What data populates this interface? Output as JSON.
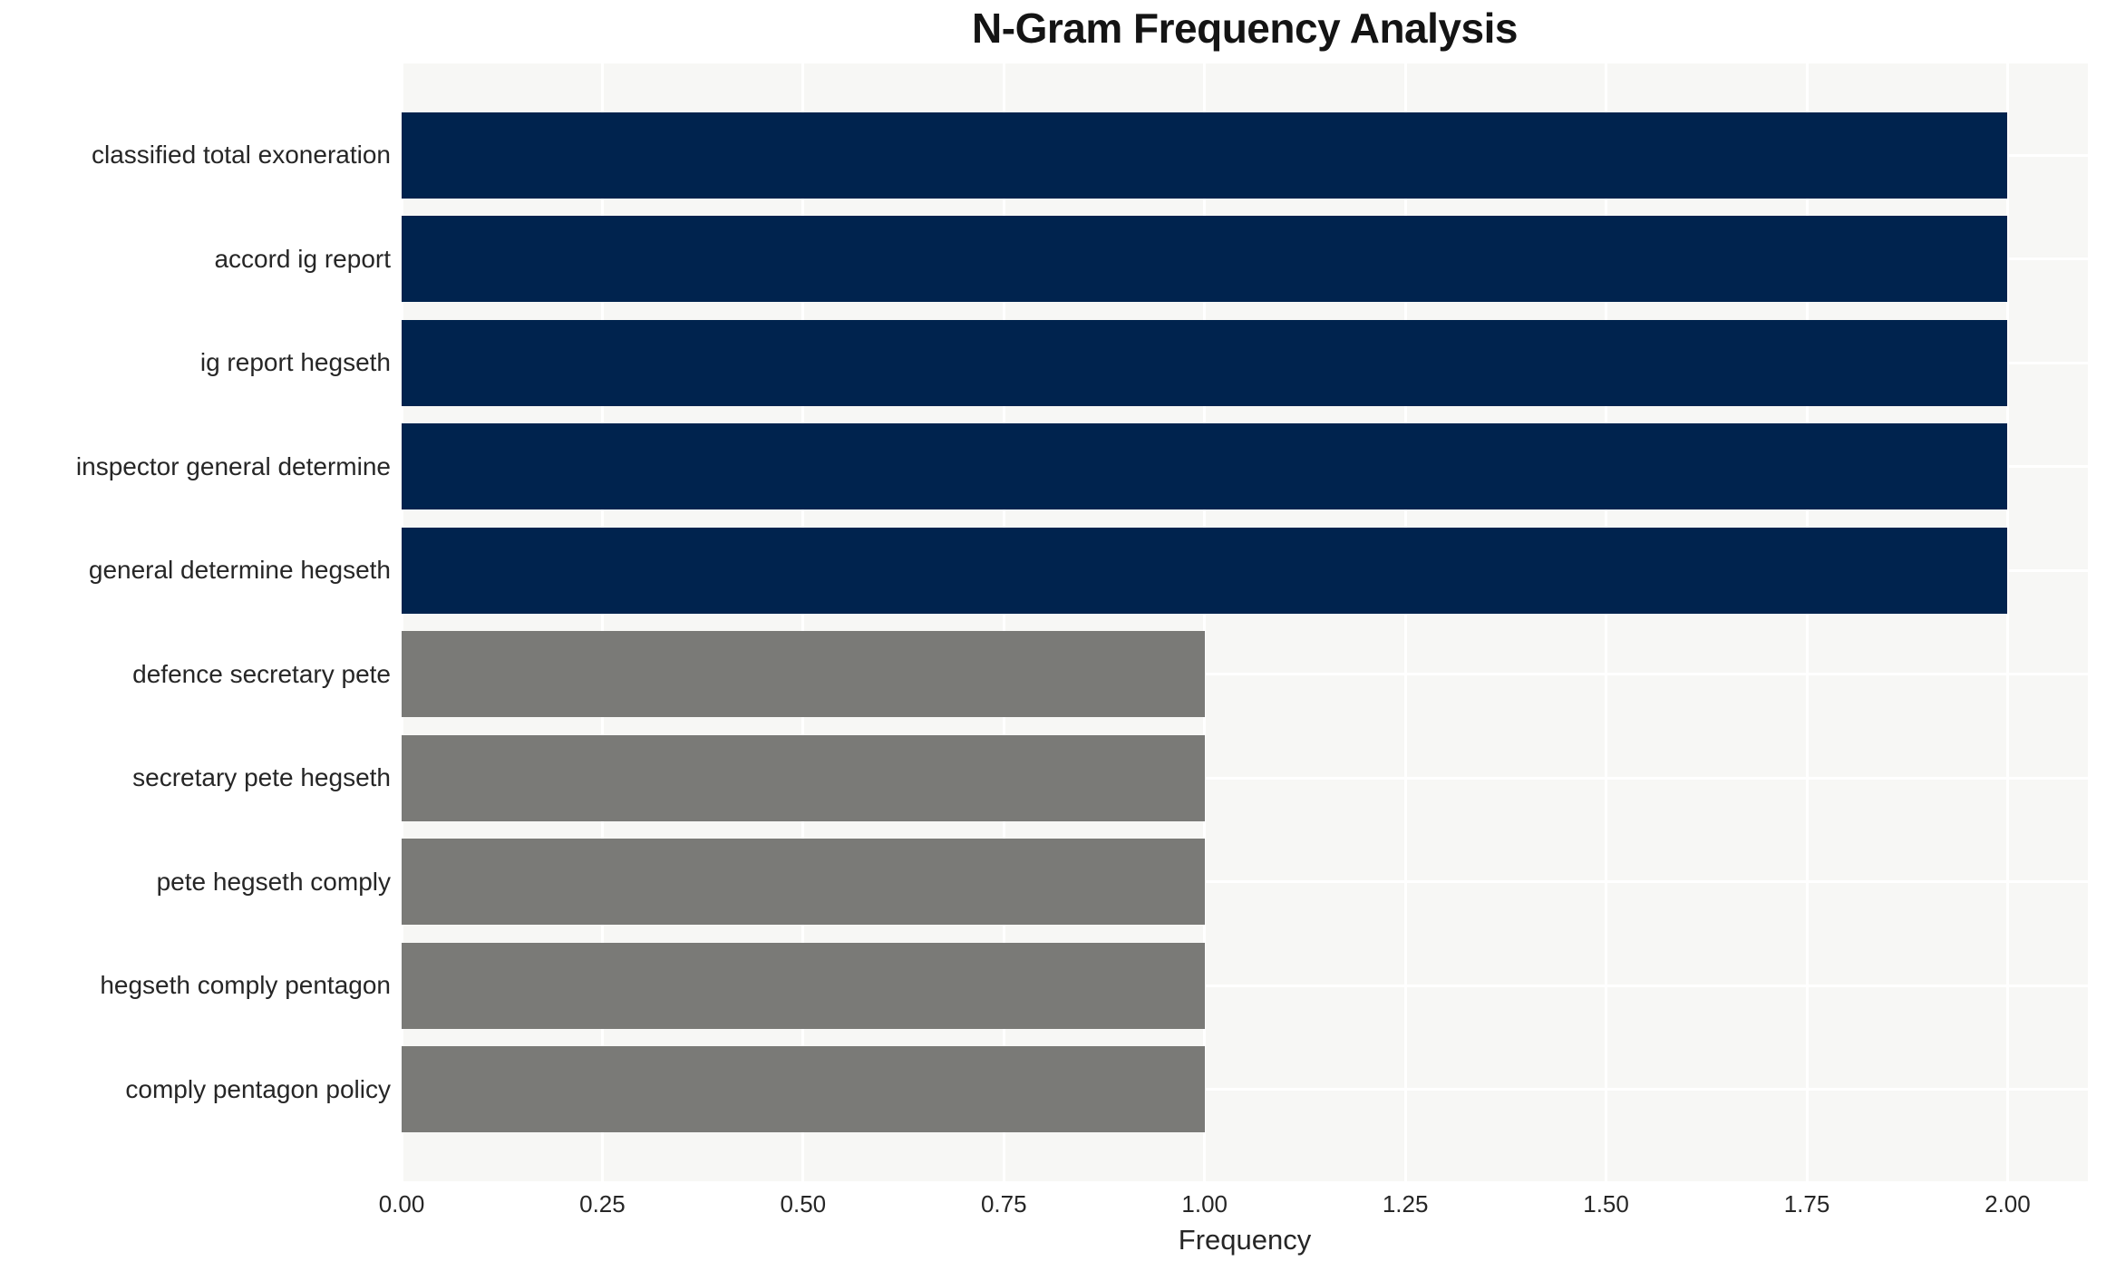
{
  "chart_data": {
    "type": "bar",
    "orientation": "horizontal",
    "title": "N-Gram Frequency Analysis",
    "xlabel": "Frequency",
    "ylabel": "",
    "categories": [
      "classified total exoneration",
      "accord ig report",
      "ig report hegseth",
      "inspector general determine",
      "general determine hegseth",
      "defence secretary pete",
      "secretary pete hegseth",
      "pete hegseth comply",
      "hegseth comply pentagon",
      "comply pentagon policy"
    ],
    "values": [
      2,
      2,
      2,
      2,
      2,
      1,
      1,
      1,
      1,
      1
    ],
    "bar_colors": [
      "#00234e",
      "#00234e",
      "#00234e",
      "#00234e",
      "#00234e",
      "#7a7a77",
      "#7a7a77",
      "#7a7a77",
      "#7a7a77",
      "#7a7a77"
    ],
    "xlim": [
      0,
      2.1
    ],
    "xticks": [
      0,
      0.25,
      0.5,
      0.75,
      1.0,
      1.25,
      1.5,
      1.75,
      2.0
    ],
    "xtick_labels": [
      "0.00",
      "0.25",
      "0.50",
      "0.75",
      "1.00",
      "1.25",
      "1.50",
      "1.75",
      "2.00"
    ],
    "grid": true,
    "legend": "none",
    "style": {
      "plot_background": "#f7f7f5",
      "gridline_color": "#ffffff",
      "figure_background": "#ffffff",
      "text_color": "#262626",
      "high_frequency_color": "#00234e",
      "low_frequency_color": "#7a7a77"
    }
  }
}
